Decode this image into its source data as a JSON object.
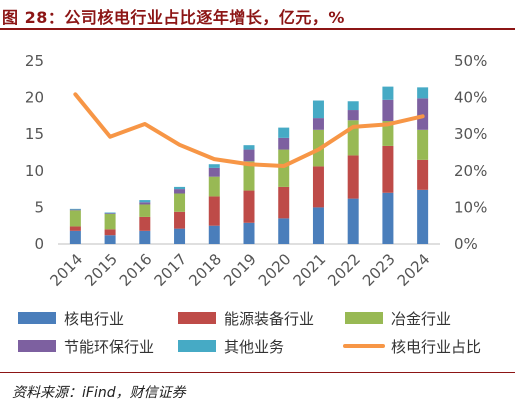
{
  "header": {
    "title": "图 28：公司核电行业占比逐年增长，亿元，%"
  },
  "footer": {
    "source": "资料来源：iFind，财信证券"
  },
  "chart_data": {
    "type": "bar",
    "stacked": true,
    "categories": [
      "2014",
      "2015",
      "2016",
      "2017",
      "2018",
      "2019",
      "2020",
      "2021",
      "2022",
      "2023",
      "2024"
    ],
    "series": [
      {
        "name": "核电行业",
        "values": [
          1.8,
          1.2,
          1.8,
          2.1,
          2.5,
          2.9,
          3.5,
          5.0,
          6.2,
          7.0,
          7.4
        ],
        "color": "#4a7ebb"
      },
      {
        "name": "能源装备行业",
        "values": [
          0.6,
          0.8,
          1.9,
          2.3,
          4.0,
          4.4,
          4.3,
          5.6,
          5.9,
          6.4,
          4.1
        ],
        "color": "#be4b48"
      },
      {
        "name": "冶金行业",
        "values": [
          2.2,
          2.1,
          1.7,
          2.5,
          2.7,
          4.0,
          5.1,
          5.0,
          4.8,
          3.4,
          4.1
        ],
        "color": "#98b954"
      },
      {
        "name": "节能环保行业",
        "values": [
          0.1,
          0.1,
          0.3,
          0.6,
          1.2,
          1.6,
          1.6,
          1.6,
          1.4,
          2.9,
          4.3
        ],
        "color": "#7d60a0"
      },
      {
        "name": "其他业务",
        "values": [
          0.1,
          0.1,
          0.3,
          0.3,
          0.5,
          0.6,
          1.4,
          2.4,
          1.2,
          1.8,
          1.5
        ],
        "color": "#46aac5"
      }
    ],
    "line": {
      "name": "核电行业占比",
      "axis": "right",
      "values": [
        40.9,
        29.3,
        32.8,
        27.1,
        23.2,
        21.8,
        21.3,
        25.8,
        32.0,
        32.7,
        34.9
      ],
      "color": "#f79646"
    },
    "left_axis": {
      "min": 0,
      "max": 25,
      "ticks": [
        "0",
        "5",
        "10",
        "15",
        "20",
        "25"
      ]
    },
    "right_axis": {
      "min": 0,
      "max": 50,
      "ticks": [
        "0%",
        "10%",
        "20%",
        "30%",
        "40%",
        "50%"
      ]
    },
    "grid": false,
    "legend_position": "bottom"
  }
}
